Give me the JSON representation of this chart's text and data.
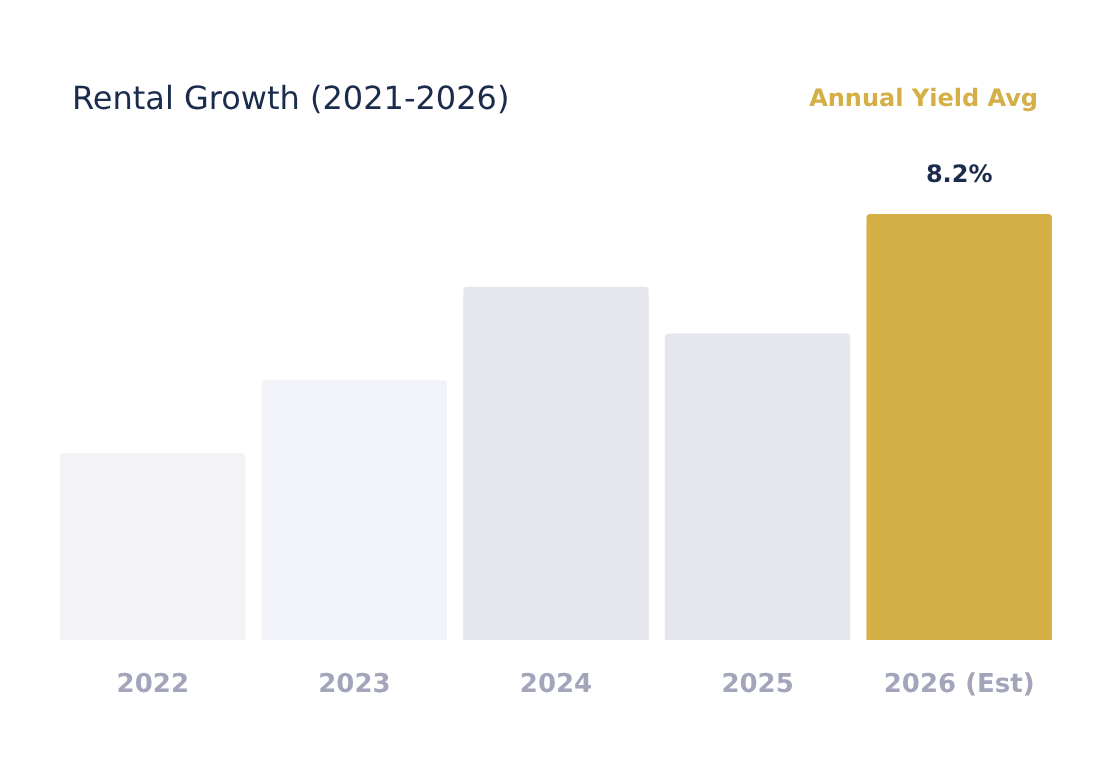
{
  "chart_data": {
    "type": "bar",
    "title": "Rental Growth (2021-2026)",
    "subtitle": "Annual Yield Avg",
    "categories": [
      "2022",
      "2023",
      "2024",
      "2025",
      "2026 (Est)"
    ],
    "values": [
      3.6,
      5.0,
      6.8,
      5.9,
      8.2
    ],
    "colors": [
      "#f2f2f7",
      "#f2f3f8",
      "#e6e7ee",
      "#e6e7ee",
      "#d4af45"
    ],
    "value_labels": [
      null,
      null,
      null,
      null,
      "8.2%"
    ],
    "grid": false
  }
}
